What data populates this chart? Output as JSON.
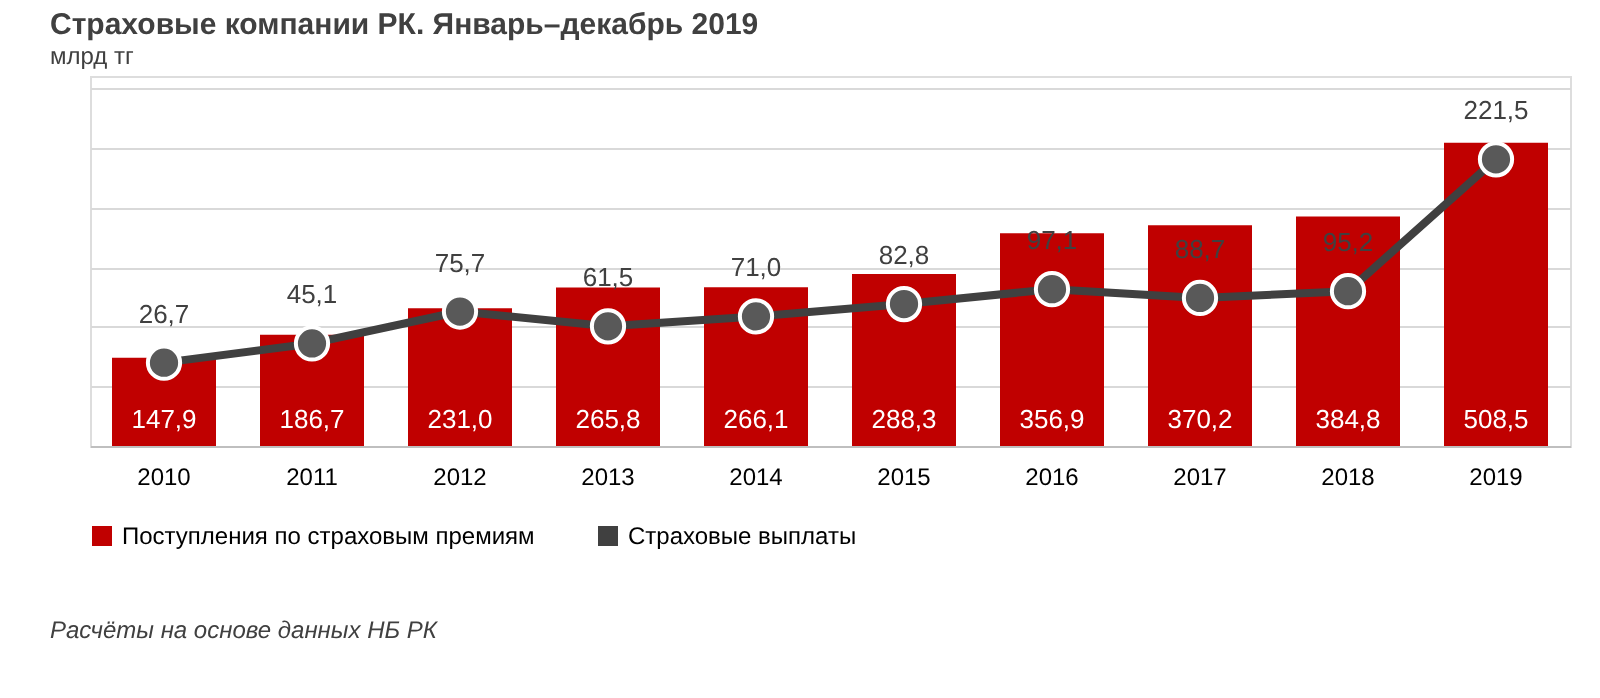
{
  "chart_data": {
    "type": "bar",
    "title": "Страховые компании РК. Январь–декабрь 2019",
    "subtitle": "млрд тг",
    "categories": [
      "2010",
      "2011",
      "2012",
      "2013",
      "2014",
      "2015",
      "2016",
      "2017",
      "2018",
      "2019"
    ],
    "series": [
      {
        "name": "Поступления по страховым премиям",
        "color": "#c00000",
        "values": [
          147.9,
          186.7,
          231.0,
          265.8,
          266.1,
          288.3,
          356.9,
          370.2,
          384.8,
          508.5
        ],
        "value_labels": [
          "147,9",
          "186,7",
          "231,0",
          "265,8",
          "266,1",
          "288,3",
          "356,9",
          "370,2",
          "384,8",
          "508,5"
        ]
      },
      {
        "name": "Страховые выплаты",
        "color": "#404040",
        "type": "line",
        "axis": "y2",
        "marker": "circle",
        "values": [
          26.7,
          45.1,
          75.7,
          61.5,
          71.0,
          82.8,
          97.1,
          88.7,
          95.2,
          221.5
        ],
        "value_labels": [
          "26,7",
          "45,1",
          "75,7",
          "61,5",
          "71,0",
          "82,8",
          "97,1",
          "88,7",
          "95,2",
          "221,5"
        ]
      }
    ],
    "grid": "y",
    "legend": "bottom",
    "annotations": [
      "Расчёты на основе данных НБ РК"
    ]
  }
}
